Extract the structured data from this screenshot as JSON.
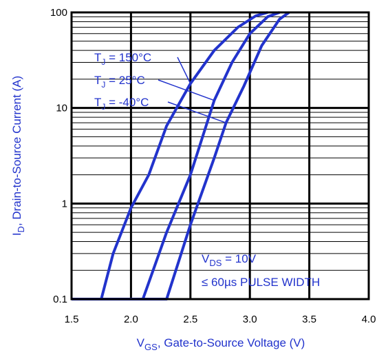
{
  "chart_data": {
    "type": "line",
    "x_scale": "linear",
    "y_scale": "log",
    "xlim": [
      1.5,
      4.0
    ],
    "ylim": [
      0.1,
      100
    ],
    "x_ticks": [
      "1.5",
      "2.0",
      "2.5",
      "3.0",
      "3.5",
      "4.0"
    ],
    "y_ticks": [
      "0.1",
      "1",
      "10",
      "100"
    ],
    "xlabel": {
      "main": "V",
      "sub": "GS",
      "rest": ", Gate-to-Source Voltage (V)"
    },
    "ylabel": {
      "main": "I",
      "sub": "D",
      "rest": ", Drain-to-Source Current (A)"
    },
    "grid": true,
    "line_color": "#2233cc",
    "series": [
      {
        "name": "T_J = 150°C",
        "label_main": "T",
        "label_sub": "J",
        "label_rest": " = 150°C",
        "x": [
          1.5,
          1.75,
          1.85,
          2.0,
          2.15,
          2.3,
          2.5,
          2.7,
          2.9,
          3.05,
          3.15
        ],
        "y": [
          0.1,
          0.1,
          0.3,
          0.9,
          2.0,
          6.5,
          18,
          40,
          70,
          92,
          100
        ]
      },
      {
        "name": "T_J = 25°C",
        "label_main": "T",
        "label_sub": "J",
        "label_rest": " = 25°C",
        "x": [
          1.5,
          2.1,
          2.3,
          2.5,
          2.7,
          2.85,
          3.0,
          3.15,
          3.25
        ],
        "y": [
          0.1,
          0.1,
          0.5,
          2.0,
          12,
          30,
          60,
          90,
          100
        ]
      },
      {
        "name": "T_J = -40°C",
        "label_main": "T",
        "label_sub": "J",
        "label_rest": " = -40°C",
        "x": [
          1.5,
          2.3,
          2.5,
          2.7,
          2.8,
          2.95,
          3.1,
          3.25,
          3.33
        ],
        "y": [
          0.1,
          0.1,
          0.6,
          3.0,
          7.0,
          17,
          45,
          85,
          100
        ]
      }
    ],
    "annotations": [
      {
        "main": "V",
        "sub": "DS",
        "rest": " = 10V"
      },
      {
        "text": "≤ 60µs PULSE WIDTH"
      }
    ]
  }
}
